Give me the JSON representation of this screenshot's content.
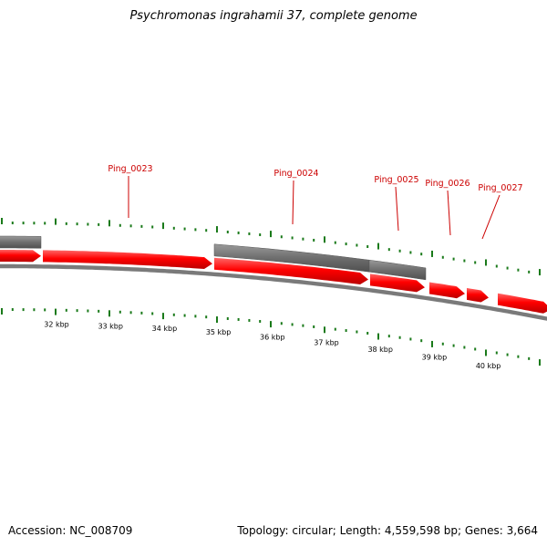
{
  "title": "Psychromonas ingrahamii 37, complete genome",
  "footer": {
    "accession": "Accession: NC_008709",
    "summary": "Topology: circular; Length: 4,559,598 bp; Genes: 3,664"
  },
  "colors": {
    "gene": "#ff0000",
    "gene_highlight": "#ff6666",
    "gene_dark": "#bb0000",
    "cds_box": "#6e6e6e",
    "backbone": "#7a7a7a",
    "ticks": "#1a7a1a",
    "label": "#cc0000"
  },
  "kbp_labels": [
    "32 kbp",
    "33 kbp",
    "34 kbp",
    "35 kbp",
    "36 kbp",
    "37 kbp",
    "38 kbp",
    "39 kbp",
    "40 kbp"
  ],
  "gene_labels": [
    "Ping_0023",
    "Ping_0024",
    "Ping_0025",
    "Ping_0026",
    "Ping_0027"
  ]
}
